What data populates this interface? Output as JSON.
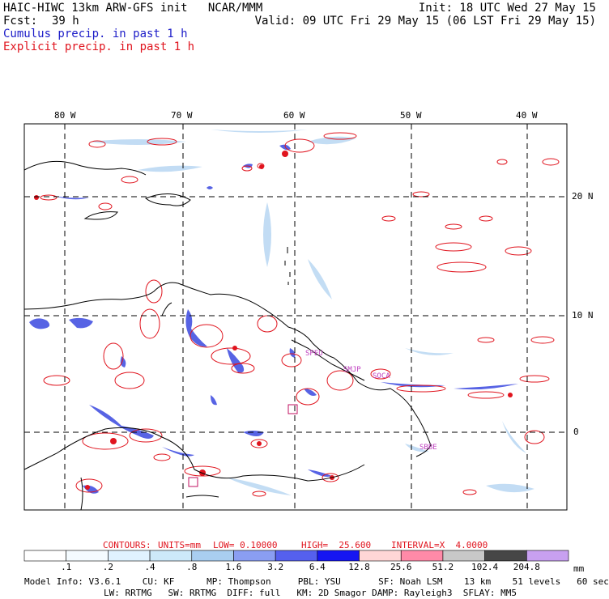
{
  "header": {
    "title": "HAIC-HIWC 13km ARW-GFS init   NCAR/MMM",
    "init": "Init: 18 UTC Wed 27 May 15",
    "fcst_label": "Fcst:",
    "fcst_value": "39 h",
    "valid": "Valid: 09 UTC Fri 29 May 15 (06 LST Fri 29 May 15)",
    "cumulus": "Cumulus precip. in past 1 h",
    "explicit": "Explicit precip. in past 1 h"
  },
  "map": {
    "lon_labels": [
      "80 W",
      "70 W",
      "60 W",
      "50 W",
      "40 W"
    ],
    "lat_labels": [
      "20 N",
      "10 N",
      "0"
    ],
    "stations": [
      "SPEU",
      "SMJP",
      "SOCA",
      "SBBE"
    ]
  },
  "contours": {
    "label": "CONTOURS:",
    "units": "UNITS=mm",
    "low": "LOW= 0.10000",
    "high": "HIGH=  25.600",
    "interval": "INTERVAL=X  4.0000"
  },
  "colorbar": {
    "unit": "mm",
    "labels": [
      ".1",
      ".2",
      ".4",
      ".8",
      "1.6",
      "3.2",
      "6.4",
      "12.8",
      "25.6",
      "51.2",
      "102.4",
      "204.8"
    ],
    "colors": [
      "#ffffff",
      "#f4fbff",
      "#e0f2ff",
      "#cde9f9",
      "#a9cef0",
      "#8a9ef2",
      "#5560ee",
      "#1616f2",
      "#ffd6d6",
      "#ff8aa8",
      "#c8c8c8",
      "#464646",
      "#c8a0f0"
    ]
  },
  "model_info": {
    "line1": "Model Info: V3.6.1    CU: KF      MP: Thompson     PBL: YSU       SF: Noah LSM    13 km    51 levels   60 sec",
    "line2": "LW: RRTMG   SW: RRTMG  DIFF: full   KM: 2D Smagor DAMP: Rayleigh3  SFLAY: MM5"
  }
}
